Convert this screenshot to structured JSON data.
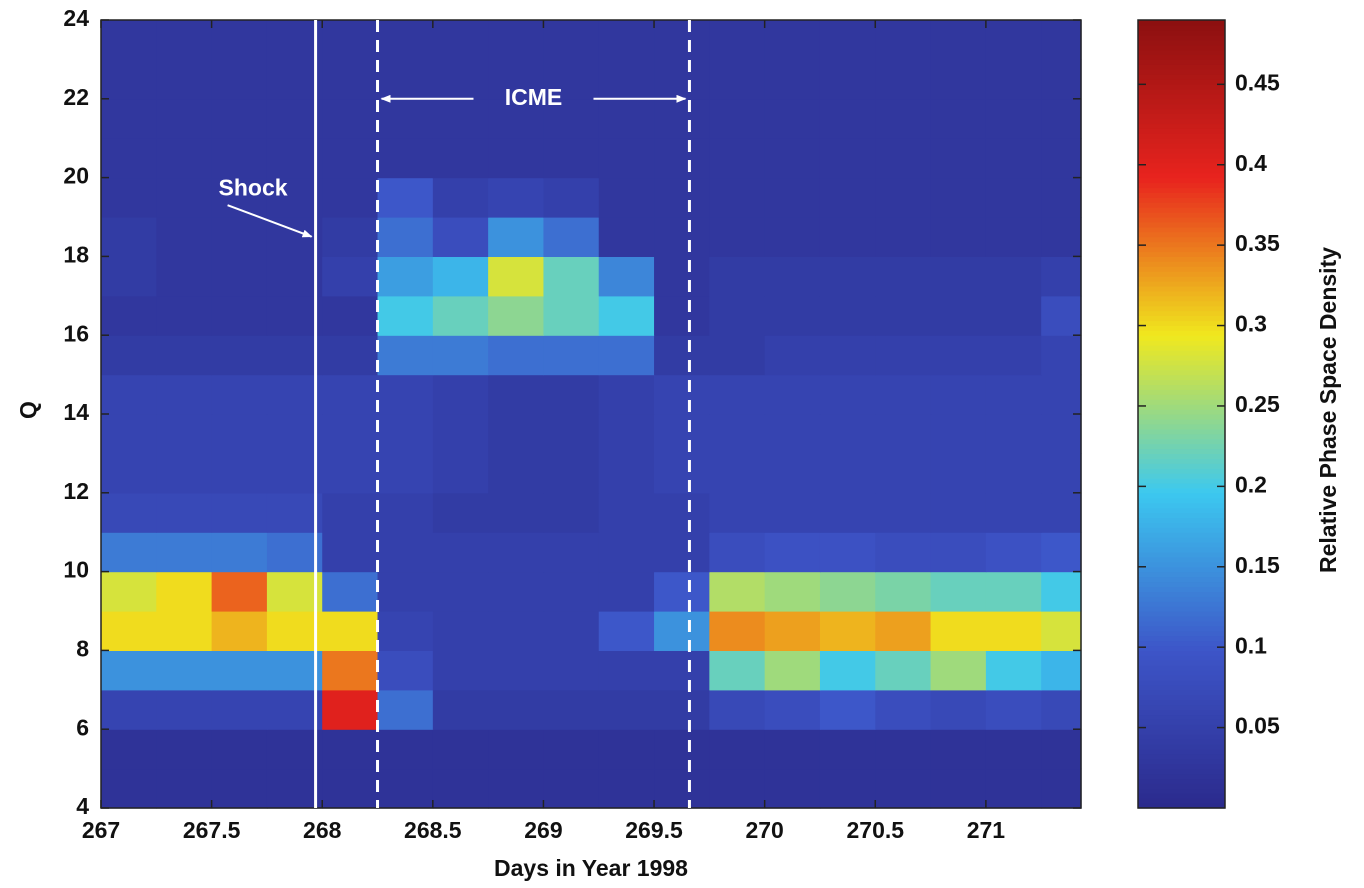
{
  "chart_data": {
    "type": "heatmap",
    "xlabel": "Days in Year 1998",
    "ylabel": "Q",
    "colorbar_label": "Relative Phase Space Density",
    "xlim": [
      267,
      271.43
    ],
    "ylim": [
      4,
      24
    ],
    "xticks": [
      267,
      267.5,
      268,
      268.5,
      269,
      269.5,
      270,
      270.5,
      271
    ],
    "yticks": [
      4,
      6,
      8,
      10,
      12,
      14,
      16,
      18,
      20,
      22,
      24
    ],
    "clim": [
      0,
      0.49
    ],
    "cticks": [
      0.05,
      0.1,
      0.15,
      0.2,
      0.25,
      0.3,
      0.35,
      0.4,
      0.45
    ],
    "colormap": [
      "#2b2a8c",
      "#3d55c8",
      "#3cc8f0",
      "#f0e81e",
      "#e8231e",
      "#8c1010"
    ],
    "x_edges": [
      267,
      267.25,
      267.5,
      267.75,
      268,
      268.25,
      268.5,
      268.75,
      269,
      269.25,
      269.5,
      269.75,
      270,
      270.25,
      270.5,
      270.75,
      271,
      271.25,
      271.43
    ],
    "y_edges": [
      4,
      5,
      6,
      7,
      8,
      9,
      10,
      11,
      12,
      13,
      14,
      15,
      16,
      17,
      18,
      19,
      20,
      21,
      22,
      23,
      24
    ],
    "values": [
      [
        0.02,
        0.02,
        0.02,
        0.02,
        0.02,
        0.02,
        0.02,
        0.02,
        0.02,
        0.02,
        0.02,
        0.02,
        0.02,
        0.02,
        0.02,
        0.02,
        0.02,
        0.02
      ],
      [
        0.02,
        0.02,
        0.02,
        0.02,
        0.02,
        0.02,
        0.02,
        0.02,
        0.02,
        0.02,
        0.02,
        0.02,
        0.02,
        0.02,
        0.02,
        0.02,
        0.02,
        0.02
      ],
      [
        0.06,
        0.06,
        0.06,
        0.06,
        0.4,
        0.12,
        0.04,
        0.04,
        0.04,
        0.04,
        0.04,
        0.07,
        0.08,
        0.1,
        0.08,
        0.07,
        0.08,
        0.07
      ],
      [
        0.15,
        0.15,
        0.15,
        0.15,
        0.35,
        0.08,
        0.05,
        0.05,
        0.05,
        0.05,
        0.05,
        0.22,
        0.25,
        0.2,
        0.22,
        0.25,
        0.2,
        0.18
      ],
      [
        0.3,
        0.3,
        0.32,
        0.3,
        0.3,
        0.06,
        0.05,
        0.05,
        0.05,
        0.1,
        0.15,
        0.34,
        0.33,
        0.32,
        0.33,
        0.3,
        0.3,
        0.28
      ],
      [
        0.28,
        0.3,
        0.36,
        0.28,
        0.12,
        0.05,
        0.05,
        0.05,
        0.05,
        0.05,
        0.1,
        0.26,
        0.25,
        0.24,
        0.23,
        0.22,
        0.22,
        0.2
      ],
      [
        0.13,
        0.13,
        0.13,
        0.12,
        0.05,
        0.05,
        0.05,
        0.05,
        0.05,
        0.05,
        0.05,
        0.08,
        0.09,
        0.09,
        0.08,
        0.08,
        0.09,
        0.1
      ],
      [
        0.07,
        0.07,
        0.07,
        0.07,
        0.05,
        0.05,
        0.04,
        0.04,
        0.04,
        0.05,
        0.05,
        0.06,
        0.06,
        0.06,
        0.06,
        0.06,
        0.06,
        0.06
      ],
      [
        0.06,
        0.06,
        0.06,
        0.06,
        0.06,
        0.06,
        0.05,
        0.04,
        0.04,
        0.05,
        0.06,
        0.06,
        0.06,
        0.06,
        0.06,
        0.06,
        0.06,
        0.06
      ],
      [
        0.06,
        0.06,
        0.06,
        0.06,
        0.06,
        0.06,
        0.05,
        0.04,
        0.04,
        0.05,
        0.06,
        0.06,
        0.06,
        0.06,
        0.06,
        0.06,
        0.06,
        0.06
      ],
      [
        0.06,
        0.06,
        0.06,
        0.06,
        0.06,
        0.06,
        0.05,
        0.04,
        0.04,
        0.05,
        0.06,
        0.06,
        0.06,
        0.06,
        0.06,
        0.06,
        0.06,
        0.06
      ],
      [
        0.04,
        0.04,
        0.04,
        0.04,
        0.04,
        0.13,
        0.13,
        0.12,
        0.12,
        0.12,
        0.04,
        0.04,
        0.05,
        0.05,
        0.05,
        0.05,
        0.05,
        0.06
      ],
      [
        0.03,
        0.03,
        0.03,
        0.03,
        0.03,
        0.2,
        0.22,
        0.24,
        0.22,
        0.2,
        0.03,
        0.04,
        0.04,
        0.04,
        0.04,
        0.04,
        0.04,
        0.08
      ],
      [
        0.04,
        0.03,
        0.03,
        0.03,
        0.05,
        0.16,
        0.18,
        0.28,
        0.22,
        0.14,
        0.03,
        0.04,
        0.04,
        0.04,
        0.04,
        0.04,
        0.04,
        0.05
      ],
      [
        0.04,
        0.03,
        0.03,
        0.03,
        0.04,
        0.12,
        0.08,
        0.15,
        0.12,
        0.03,
        0.03,
        0.03,
        0.03,
        0.03,
        0.03,
        0.03,
        0.03,
        0.03
      ],
      [
        0.03,
        0.03,
        0.03,
        0.03,
        0.03,
        0.1,
        0.05,
        0.06,
        0.05,
        0.03,
        0.03,
        0.03,
        0.03,
        0.03,
        0.03,
        0.03,
        0.03,
        0.03
      ],
      [
        0.03,
        0.03,
        0.03,
        0.03,
        0.03,
        0.03,
        0.03,
        0.03,
        0.03,
        0.03,
        0.03,
        0.03,
        0.03,
        0.03,
        0.03,
        0.03,
        0.03,
        0.03
      ],
      [
        0.03,
        0.03,
        0.03,
        0.03,
        0.03,
        0.03,
        0.03,
        0.03,
        0.03,
        0.03,
        0.03,
        0.03,
        0.03,
        0.03,
        0.03,
        0.03,
        0.03,
        0.03
      ],
      [
        0.03,
        0.03,
        0.03,
        0.03,
        0.03,
        0.03,
        0.03,
        0.03,
        0.03,
        0.03,
        0.03,
        0.03,
        0.03,
        0.03,
        0.03,
        0.03,
        0.03,
        0.03
      ],
      [
        0.03,
        0.03,
        0.03,
        0.03,
        0.03,
        0.03,
        0.03,
        0.03,
        0.03,
        0.03,
        0.03,
        0.03,
        0.03,
        0.03,
        0.03,
        0.03,
        0.03,
        0.03
      ]
    ],
    "shock": {
      "label": "Shock",
      "x": 267.97
    },
    "icme": {
      "label": "ICME",
      "start": 268.25,
      "end": 269.66
    }
  }
}
